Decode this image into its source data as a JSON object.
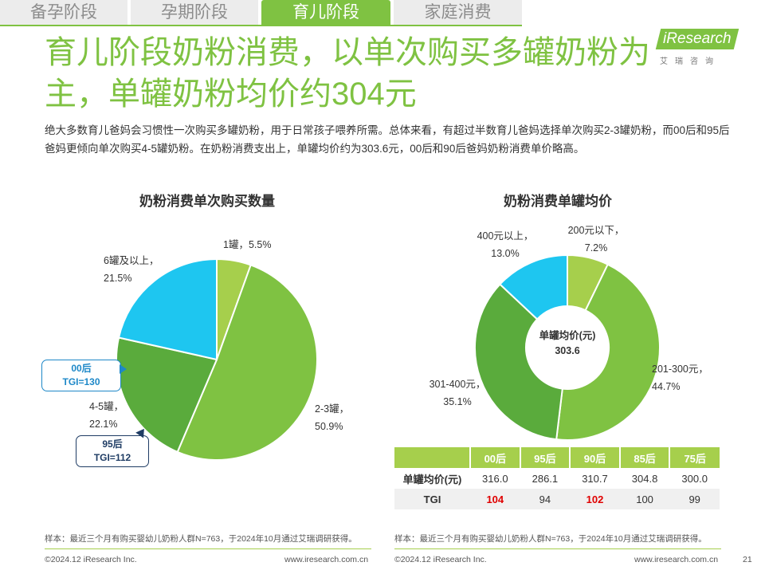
{
  "tabs": [
    {
      "label": "备孕阶段"
    },
    {
      "label": "孕期阶段"
    },
    {
      "label": "育儿阶段",
      "active": true
    },
    {
      "label": "家庭消费"
    }
  ],
  "logo": {
    "text": "iResearch",
    "cn": "艾瑞咨询"
  },
  "title": "育儿阶段奶粉消费，以单次购买多罐奶粉为主，单罐奶粉均价约304元",
  "description": "绝大多数育儿爸妈会习惯性一次购买多罐奶粉，用于日常孩子喂养所需。总体来看，有超过半数育儿爸妈选择单次购买2-3罐奶粉，而00后和95后爸妈更倾向单次购买4-5罐奶粉。在奶粉消费支出上，单罐均价约为303.6元，00后和90后爸妈奶粉消费单价略高。",
  "colors": {
    "accent": "#7fc242",
    "light_green": "#a6cf4c",
    "dark_green": "#5aab3c",
    "blue": "#1ec6f0",
    "callout_blue": "#1e88c8",
    "callout_navy": "#1f3c64",
    "highlight": "#e00000"
  },
  "chart_data": [
    {
      "type": "pie",
      "title": "奶粉消费单次购买数量",
      "slices": [
        {
          "label": "1罐",
          "value": 5.5,
          "color": "#a6cf4c"
        },
        {
          "label": "2-3罐",
          "value": 50.9,
          "color": "#7fc242"
        },
        {
          "label": "4-5罐",
          "value": 22.1,
          "color": "#5aab3c"
        },
        {
          "label": "6罐及以上",
          "value": 21.5,
          "color": "#1ec6f0"
        }
      ],
      "callouts": [
        {
          "group": "00后",
          "text": "TGI=130",
          "color": "#1e88c8"
        },
        {
          "group": "95后",
          "text": "TGI=112",
          "color": "#1f3c64"
        }
      ]
    },
    {
      "type": "donut",
      "title": "奶粉消费单罐均价",
      "center_label": "单罐均价(元)",
      "center_value": "303.6",
      "slices": [
        {
          "label": "200元以下",
          "value": 7.2,
          "color": "#a6cf4c"
        },
        {
          "label": "201-300元",
          "value": 44.7,
          "color": "#7fc242"
        },
        {
          "label": "301-400元",
          "value": 35.1,
          "color": "#5aab3c"
        },
        {
          "label": "400元以上",
          "value": 13.0,
          "color": "#1ec6f0"
        }
      ]
    },
    {
      "type": "table",
      "columns": [
        "00后",
        "95后",
        "90后",
        "85后",
        "75后"
      ],
      "rows": [
        {
          "label": "单罐均价(元)",
          "values": [
            "316.0",
            "286.1",
            "310.7",
            "304.8",
            "300.0"
          ],
          "highlight": [
            false,
            false,
            false,
            false,
            false
          ]
        },
        {
          "label": "TGI",
          "values": [
            "104",
            "94",
            "102",
            "100",
            "99"
          ],
          "highlight": [
            true,
            false,
            true,
            false,
            false
          ]
        }
      ]
    }
  ],
  "footnote_left": "样本：最近三个月有购买婴幼儿奶粉人群N=763，于2024年10月通过艾瑞调研获得。",
  "footnote_right": "样本：最近三个月有购买婴幼儿奶粉人群N=763，于2024年10月通过艾瑞调研获得。",
  "footer": {
    "copyright_left": "©2024.12 iResearch Inc.",
    "url_left": "www.iresearch.com.cn",
    "copyright_right": "©2024.12 iResearch Inc.",
    "url_right": "www.iresearch.com.cn",
    "page": "21"
  }
}
